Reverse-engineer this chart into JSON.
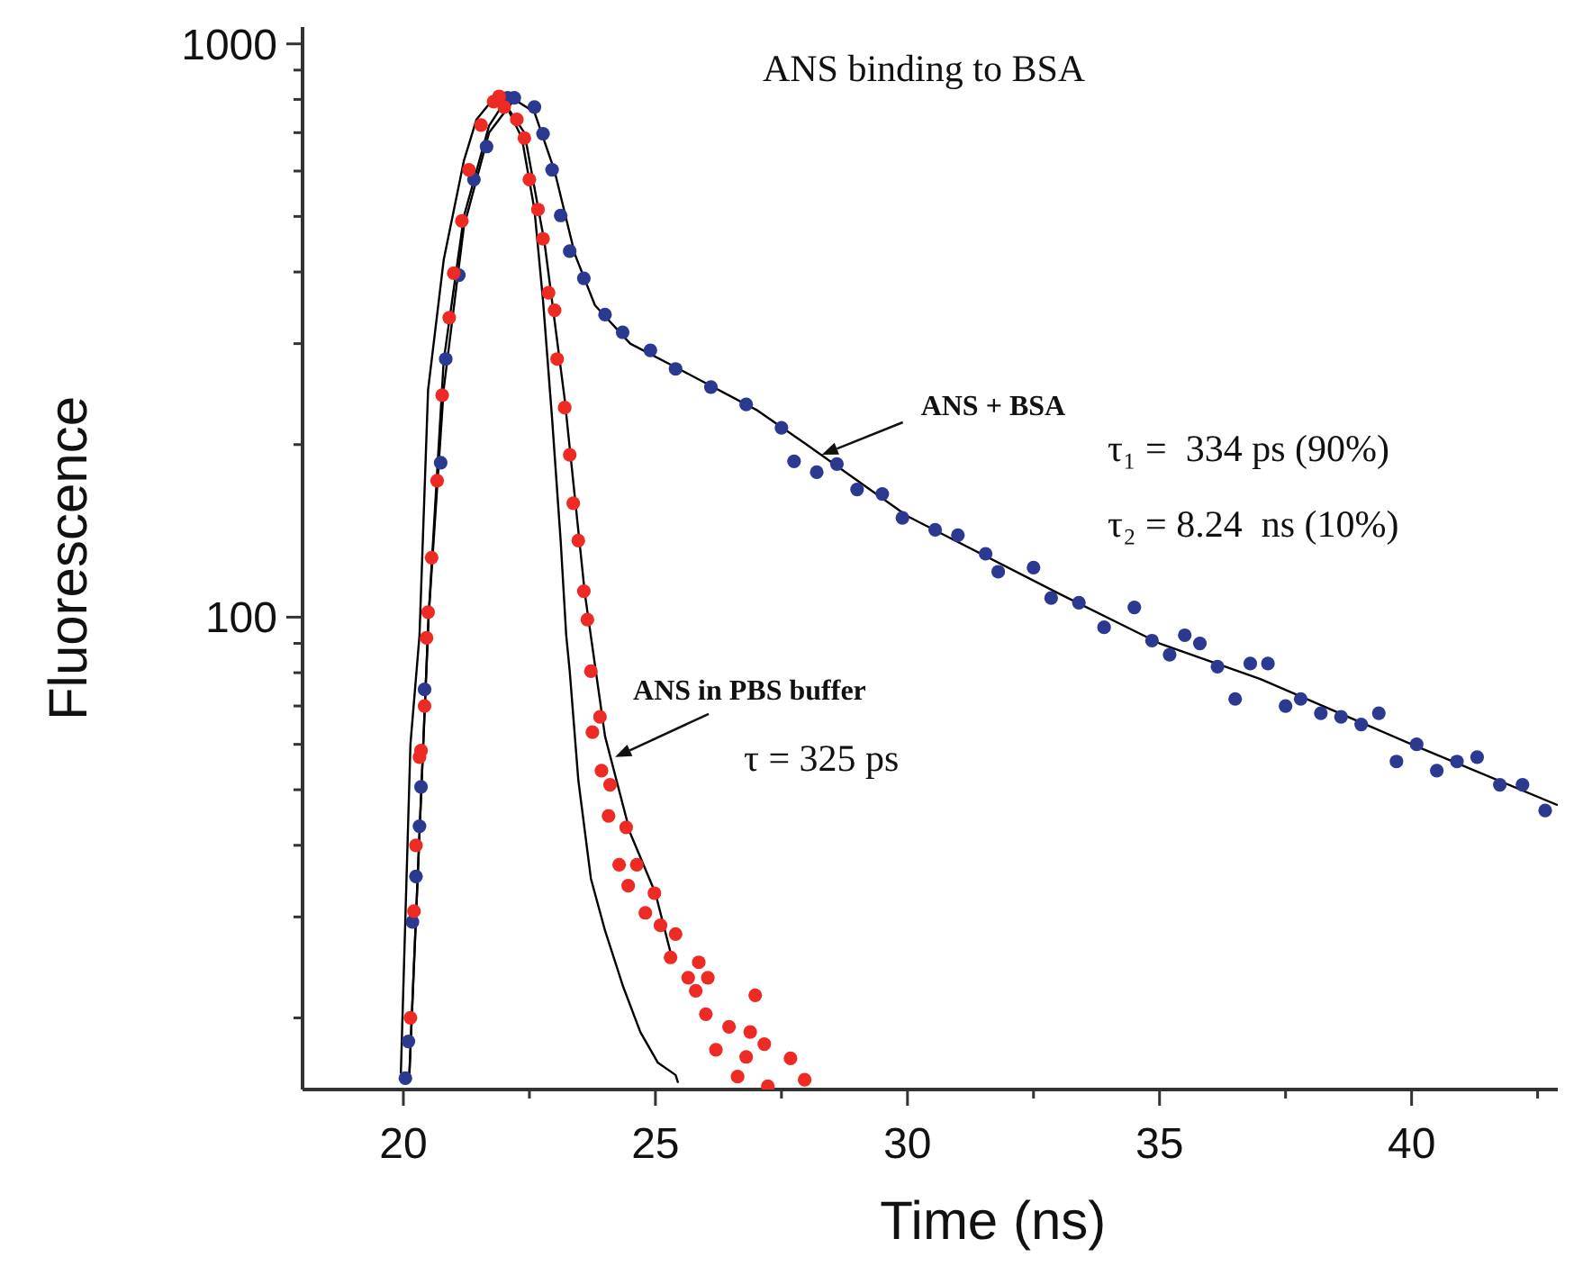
{
  "chart_data": {
    "type": "scatter",
    "title": "ANS binding to BSA",
    "xlabel": "Time (ns)",
    "ylabel": "Fluorescence",
    "xlim": [
      18,
      42.9
    ],
    "xticks": [
      20,
      {
        "value": 22.5,
        "label": null
      },
      25,
      {
        "value": 27.5,
        "label": null
      },
      30,
      {
        "value": 32.5,
        "label": null
      },
      35,
      {
        "value": 37.5,
        "label": null
      },
      40,
      {
        "value": 42.5,
        "label": null
      }
    ],
    "ylim": [
      15,
      1070
    ],
    "yticks": [
      {
        "value": 20,
        "label": null
      },
      {
        "value": 30,
        "label": null
      },
      {
        "value": 40,
        "label": null
      },
      {
        "value": 50,
        "label": null
      },
      {
        "value": 60,
        "label": null
      },
      {
        "value": 70,
        "label": null
      },
      {
        "value": 80,
        "label": null
      },
      {
        "value": 90,
        "label": null
      },
      100,
      {
        "value": 200,
        "label": null
      },
      {
        "value": 300,
        "label": null
      },
      {
        "value": 400,
        "label": null
      },
      {
        "value": 500,
        "label": null
      },
      {
        "value": 600,
        "label": null
      },
      {
        "value": 700,
        "label": null
      },
      {
        "value": 800,
        "label": null
      },
      {
        "value": 900,
        "label": null
      },
      1000
    ],
    "log": "y",
    "series": [
      {
        "type": "line",
        "color": "#000000",
        "x": [
          19.95,
          20.14,
          20.32,
          20.49,
          20.8,
          21.2,
          21.45,
          21.8,
          22.0,
          22.35,
          22.6,
          22.77,
          22.95,
          23.12,
          23.23,
          23.3,
          23.47,
          23.72,
          24.0,
          24.35,
          24.7,
          25.05,
          25.4,
          25.45
        ],
        "values": [
          16,
          60,
          93,
          249,
          420,
          625,
          738,
          805,
          793,
          686,
          514,
          357,
          222,
          136,
          93,
          80.5,
          52,
          35,
          28.4,
          22.8,
          18.9,
          16.7,
          15.9,
          15.4
        ]
      },
      {
        "type": "line",
        "color": "#000000",
        "x": [
          20.12,
          20.5,
          20.8,
          21.2,
          21.7,
          22.2,
          22.6,
          23.0,
          23.4,
          23.8,
          24.5,
          25.5,
          27,
          28,
          30,
          33,
          35,
          37,
          40,
          42.9
        ],
        "values": [
          16,
          100,
          250,
          480,
          700,
          800,
          760,
          600,
          430,
          350,
          300,
          270,
          230,
          200,
          150,
          110,
          90,
          78,
          60,
          47
        ]
      },
      {
        "type": "line",
        "color": "#000000",
        "x": [
          20.12,
          20.5,
          20.8,
          21.2,
          21.7,
          22.0,
          22.4,
          22.8,
          23.2,
          23.6,
          24.0,
          24.5,
          25.0,
          25.3
        ],
        "values": [
          16,
          100,
          280,
          500,
          720,
          790,
          700,
          450,
          240,
          110,
          62,
          42,
          33,
          26
        ]
      },
      {
        "marker": "circle",
        "color": "#2b3990",
        "x": [
          20.04,
          20.1,
          20.18,
          20.25,
          20.32,
          20.35,
          20.42,
          20.49,
          20.74,
          20.84,
          21.1,
          21.4,
          21.65,
          22.07,
          22.2,
          22.6,
          22.77,
          22.95,
          23.12,
          23.3,
          23.58,
          24.0,
          24.35,
          24.9,
          25.4,
          26.1,
          26.8,
          27.5,
          27.75,
          28.2,
          28.6,
          29.0,
          29.5,
          29.9,
          30.55,
          31.0,
          31.55,
          31.8,
          32.5,
          32.85,
          33.4,
          33.9,
          34.5,
          34.85,
          35.2,
          35.5,
          35.8,
          36.15,
          36.5,
          36.8,
          37.15,
          37.5,
          37.8,
          38.2,
          38.6,
          39.0,
          39.35,
          39.7,
          40.1,
          40.5,
          40.9,
          41.3,
          41.75,
          42.2,
          42.65
        ],
        "values": [
          15.7,
          18.2,
          29.4,
          35.3,
          43.2,
          50.6,
          74.8,
          null,
          186,
          282,
          395,
          580,
          662,
          805,
          805,
          776,
          697,
          603,
          502,
          435,
          390,
          337,
          314,
          292,
          271,
          252,
          235,
          214,
          187,
          179,
          185,
          167,
          164,
          149,
          142,
          139,
          129,
          120,
          122,
          108,
          106,
          96,
          104,
          91,
          86,
          93,
          90,
          82,
          72,
          83,
          83,
          70,
          72,
          68,
          67,
          65,
          68,
          56,
          60,
          54,
          56,
          57,
          51,
          51,
          46
        ]
      },
      {
        "marker": "circle",
        "color": "#ee2a24",
        "x": [
          20.14,
          20.21,
          20.25,
          20.32,
          20.35,
          20.42,
          20.46,
          20.49,
          20.56,
          20.67,
          20.77,
          20.91,
          21.0,
          21.16,
          21.3,
          21.54,
          21.79,
          21.9,
          22.0,
          22.25,
          22.4,
          22.5,
          22.67,
          22.77,
          22.88,
          23.0,
          23.05,
          23.2,
          23.3,
          23.37,
          23.47,
          23.58,
          23.65,
          23.72,
          23.75,
          23.9,
          23.93,
          24.07,
          24.1,
          24.28,
          24.42,
          24.46,
          24.63,
          24.8,
          24.98,
          25.1,
          25.3,
          25.4,
          25.65,
          25.8,
          25.86,
          26.0,
          26.04,
          26.2,
          26.46,
          26.63,
          26.8,
          26.88,
          26.98,
          27.16,
          27.23,
          27.68,
          27.96
        ],
        "values": [
          20,
          30.7,
          40,
          57,
          58.5,
          70,
          92,
          102,
          127,
          173,
          244,
          333,
          398,
          491,
          603,
          722,
          793,
          810,
          776,
          738,
          685,
          580,
          514,
          457,
          368,
          343,
          282,
          232,
          192,
          158,
          136,
          111,
          99,
          80.5,
          63,
          67,
          54,
          45,
          51,
          37,
          43,
          34,
          37,
          30.5,
          33,
          29,
          25.5,
          28,
          23.5,
          22.3,
          25,
          20.3,
          23.5,
          17.6,
          19.3,
          15.8,
          17.1,
          18.9,
          21.9,
          18,
          15.2,
          17,
          15.6
        ]
      }
    ],
    "annotations": [
      {
        "text": "ANS + BSA",
        "x": 28.3,
        "y": 192
      },
      "τ₁ =  334 ps (90%)",
      "τ₂ = 8.24  ns (10%)",
      {
        "text": "ANS in PBS buffer",
        "x": 24.2,
        "y": 57
      },
      "τ = 325 ps"
    ]
  }
}
